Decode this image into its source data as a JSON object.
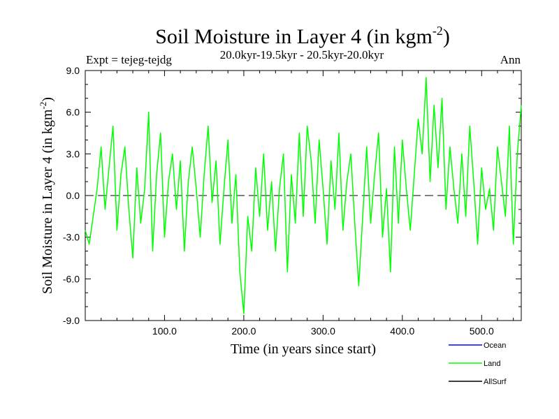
{
  "chart_data": {
    "type": "line",
    "title": "Soil Moisture in Layer 4 (in kgm",
    "title_superscript": "-2",
    "title_close": ")",
    "subtitle_left": "Expt = tejeg-tejdg",
    "subtitle_center": "20.0kyr-19.5kyr - 20.5kyr-20.0kyr",
    "subtitle_right": "Ann",
    "xlabel": "Time (in years since start)",
    "ylabel": "Soil Moisture in Layer 4 (in kgm",
    "ylabel_superscript": "-2",
    "ylabel_close": ")",
    "xlim": [
      0,
      550
    ],
    "ylim": [
      -9,
      9
    ],
    "xticks": [
      100,
      200,
      300,
      400,
      500
    ],
    "xtick_labels": [
      "100.0",
      "200.0",
      "300.0",
      "400.0",
      "500.0"
    ],
    "yticks": [
      9,
      6,
      3,
      0,
      -3,
      -6,
      -9
    ],
    "ytick_labels": [
      "9.0",
      "6.0",
      "3.0",
      "0.0",
      "-3.0",
      "-6.0",
      "-9.0"
    ],
    "zero_line": 0,
    "legend_position": "bottom-right",
    "series": [
      {
        "name": "Ocean",
        "color": "#0000ff",
        "values": []
      },
      {
        "name": "Land",
        "color": "#00ff00",
        "x": [
          0,
          5,
          10,
          15,
          20,
          25,
          30,
          35,
          40,
          45,
          50,
          55,
          60,
          65,
          70,
          75,
          80,
          85,
          90,
          95,
          100,
          105,
          110,
          115,
          120,
          125,
          130,
          135,
          140,
          145,
          150,
          155,
          160,
          165,
          170,
          175,
          180,
          185,
          190,
          195,
          200,
          205,
          210,
          215,
          220,
          225,
          230,
          235,
          240,
          245,
          250,
          255,
          260,
          265,
          270,
          275,
          280,
          285,
          290,
          295,
          300,
          305,
          310,
          315,
          320,
          325,
          330,
          335,
          340,
          345,
          350,
          355,
          360,
          365,
          370,
          375,
          380,
          385,
          390,
          395,
          400,
          405,
          410,
          415,
          420,
          425,
          430,
          435,
          440,
          445,
          450,
          455,
          460,
          465,
          470,
          475,
          480,
          485,
          490,
          495,
          500,
          505,
          510,
          515,
          520,
          525,
          530,
          535,
          540,
          545,
          550
        ],
        "values": [
          -2.5,
          -3.5,
          -1.5,
          0.5,
          3.5,
          -1.0,
          2.0,
          5.0,
          -2.5,
          1.5,
          3.5,
          -1.0,
          -4.5,
          2.0,
          -2.0,
          0.5,
          6.0,
          -4.0,
          1.5,
          4.5,
          -3.0,
          1.0,
          3.0,
          -1.0,
          2.5,
          -4.0,
          1.0,
          3.5,
          0.5,
          -3.0,
          1.5,
          5.0,
          -0.5,
          2.5,
          -3.5,
          0.5,
          4.0,
          -2.0,
          1.5,
          -5.5,
          -8.5,
          -1.5,
          -4.0,
          2.0,
          -1.5,
          3.0,
          -2.5,
          1.0,
          -4.0,
          0.5,
          3.0,
          -5.5,
          1.5,
          -2.0,
          4.5,
          -1.5,
          5.0,
          2.5,
          -2.0,
          4.0,
          0.5,
          -3.5,
          2.5,
          -1.0,
          4.5,
          -2.5,
          1.0,
          3.0,
          -2.0,
          -6.5,
          -1.5,
          3.5,
          -2.0,
          1.5,
          4.5,
          -3.0,
          0.5,
          -5.5,
          3.5,
          -2.0,
          4.0,
          0.5,
          -2.5,
          1.5,
          5.5,
          3.0,
          8.5,
          1.0,
          6.5,
          2.0,
          7.0,
          -1.0,
          3.5,
          0.5,
          -2.0,
          3.0,
          -1.5,
          5.0,
          1.0,
          -3.5,
          2.0,
          -1.0,
          0.5,
          -2.5,
          3.5,
          1.0,
          -1.5,
          5.0,
          -3.5,
          3.0,
          6.5
        ]
      },
      {
        "name": "AllSurf",
        "color": "#000000",
        "values": []
      }
    ]
  }
}
